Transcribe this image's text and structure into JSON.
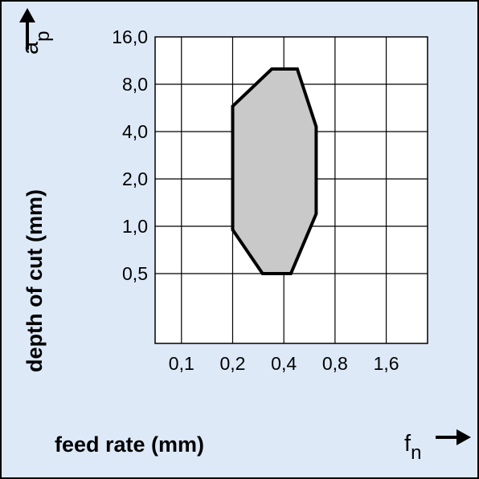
{
  "colors": {
    "background": "#dde9f7",
    "frame": "#000000",
    "plot_background": "#ffffff",
    "grid": "#000000",
    "region_fill": "#c9c9c9",
    "region_stroke": "#000000"
  },
  "chart_data": {
    "type": "area",
    "xlabel": "feed rate (mm)",
    "ylabel": "depth of cut (mm)",
    "x_symbol": "f",
    "x_symbol_sub": "n",
    "y_symbol": "a",
    "y_symbol_sub": "p",
    "x_scale": "log2",
    "y_scale": "log2",
    "xlim": [
      0.07,
      2.8
    ],
    "ylim": [
      0.18,
      16.0
    ],
    "x_ticks": [
      {
        "value": 0.1,
        "label": "0,1"
      },
      {
        "value": 0.2,
        "label": "0,2"
      },
      {
        "value": 0.4,
        "label": "0,4"
      },
      {
        "value": 0.8,
        "label": "0,8"
      },
      {
        "value": 1.6,
        "label": "1,6"
      }
    ],
    "y_ticks": [
      {
        "value": 0.5,
        "label": "0,5"
      },
      {
        "value": 1.0,
        "label": "1,0"
      },
      {
        "value": 2.0,
        "label": "2,0"
      },
      {
        "value": 4.0,
        "label": "4,0"
      },
      {
        "value": 8.0,
        "label": "8,0"
      },
      {
        "value": 16.0,
        "label": "16,0"
      }
    ],
    "grid": true,
    "region": [
      {
        "x": 0.2,
        "y": 5.8
      },
      {
        "x": 0.34,
        "y": 10.0
      },
      {
        "x": 0.48,
        "y": 10.0
      },
      {
        "x": 0.62,
        "y": 4.3
      },
      {
        "x": 0.62,
        "y": 1.2
      },
      {
        "x": 0.44,
        "y": 0.5
      },
      {
        "x": 0.3,
        "y": 0.5
      },
      {
        "x": 0.2,
        "y": 0.95
      }
    ]
  }
}
